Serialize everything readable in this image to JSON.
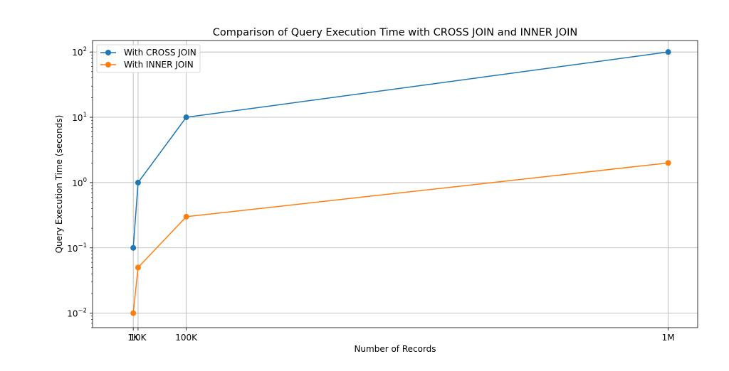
{
  "chart_data": {
    "type": "line",
    "title": "Comparison of Query Execution Time with CROSS JOIN and INNER JOIN",
    "xlabel": "Number of Records",
    "ylabel": "Query Execution Time (seconds)",
    "x": [
      1000,
      10000,
      100000,
      1000000
    ],
    "xlim": [
      -75000,
      1055000
    ],
    "x_ticks": [
      {
        "value": 1000,
        "label": "1K"
      },
      {
        "value": 10000,
        "label": "10K"
      },
      {
        "value": 100000,
        "label": "100K"
      },
      {
        "value": 1000000,
        "label": "1M"
      }
    ],
    "y_scale": "log",
    "ylim": [
      0.006,
      150
    ],
    "y_ticks": [
      {
        "value": 0.01,
        "base": "10",
        "exp": "−2"
      },
      {
        "value": 0.1,
        "base": "10",
        "exp": "−1"
      },
      {
        "value": 1,
        "base": "10",
        "exp": "0"
      },
      {
        "value": 10,
        "base": "10",
        "exp": "1"
      },
      {
        "value": 100,
        "base": "10",
        "exp": "2"
      }
    ],
    "grid": true,
    "legend_position": "top-left",
    "series": [
      {
        "name": "With CROSS JOIN",
        "color": "#1f77b4",
        "values": [
          0.1,
          1,
          10,
          100
        ]
      },
      {
        "name": "With INNER JOIN",
        "color": "#ff7f0e",
        "values": [
          0.01,
          0.05,
          0.3,
          2
        ]
      }
    ]
  }
}
